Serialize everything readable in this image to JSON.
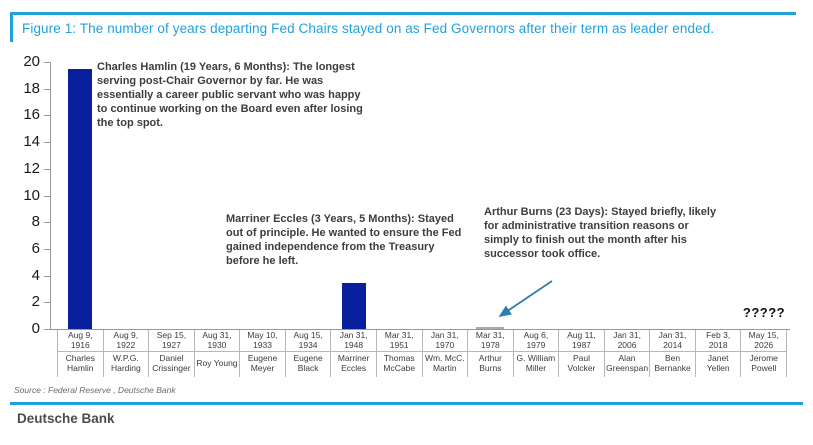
{
  "figure": {
    "title": "Figure 1: The number of years departing Fed Chairs stayed on as Fed Governors after their term as leader ended.",
    "source": "Source : Federal Reserve , Deutsche Bank",
    "brand": "Deutsche Bank"
  },
  "colors": {
    "accent_blue": "#21a0dc",
    "bar_navy": "#0a1f9e",
    "tiny_bar_gray": "#a8a8a8",
    "arrow_blue": "#2d7fae",
    "axis_gray": "#999999",
    "grid_border": "#b7b7b7",
    "text_dark": "#3d3d3d"
  },
  "chart_data": {
    "type": "bar",
    "title": "Figure 1: The number of years departing Fed Chairs stayed on as Fed Governors after their term as leader ended.",
    "xlabel": "",
    "ylabel": "",
    "ylim": [
      0,
      20
    ],
    "ytick_step": 2,
    "grid": false,
    "legend": false,
    "bars": [
      {
        "date": "Aug 9,\n1916",
        "name": "Charles\nHamlin",
        "years": 19.5
      },
      {
        "date": "Aug 9,\n1922",
        "name": "W.P.G.\nHarding",
        "years": 0
      },
      {
        "date": "Sep 15,\n1927",
        "name": "Daniel\nCrissinger",
        "years": 0
      },
      {
        "date": "Aug 31,\n1930",
        "name": "Roy Young",
        "years": 0
      },
      {
        "date": "May 10,\n1933",
        "name": "Eugene\nMeyer",
        "years": 0
      },
      {
        "date": "Aug 15,\n1934",
        "name": "Eugene\nBlack",
        "years": 0
      },
      {
        "date": "Jan 31,\n1948",
        "name": "Marriner\nEccles",
        "years": 3.42
      },
      {
        "date": "Mar 31,\n1951",
        "name": "Thomas\nMcCabe",
        "years": 0
      },
      {
        "date": "Jan 31,\n1970",
        "name": "Wm. McC.\nMartin",
        "years": 0
      },
      {
        "date": "Mar 31,\n1978",
        "name": "Arthur\nBurns",
        "years": 0.06
      },
      {
        "date": "Aug 6,\n1979",
        "name": "G. William\nMiller",
        "years": 0
      },
      {
        "date": "Aug 11,\n1987",
        "name": "Paul\nVolcker",
        "years": 0
      },
      {
        "date": "Jan 31,\n2006",
        "name": "Alan\nGreenspan",
        "years": 0
      },
      {
        "date": "Jan 31,\n2014",
        "name": "Ben\nBernanke",
        "years": 0
      },
      {
        "date": "Feb 3, 2018",
        "name": "Janet\nYellen",
        "years": 0
      },
      {
        "date": "May 15,\n2026",
        "name": "Jerome\nPowell",
        "years": null
      }
    ]
  },
  "annotations": {
    "hamlin": "Charles Hamlin (19 Years, 6 Months): The longest serving post-Chair Governor by far. He was essentially a career public servant who was happy to continue working on the Board even after losing the top spot.",
    "eccles": "Marriner Eccles (3 Years, 5 Months): Stayed out of principle. He wanted to ensure the Fed gained independence from the Treasury before he left.",
    "burns": "Arthur Burns (23 Days): Stayed briefly, likely for administrative transition reasons or simply to finish out the month after his successor took office.",
    "powell_unknown": "?????"
  }
}
